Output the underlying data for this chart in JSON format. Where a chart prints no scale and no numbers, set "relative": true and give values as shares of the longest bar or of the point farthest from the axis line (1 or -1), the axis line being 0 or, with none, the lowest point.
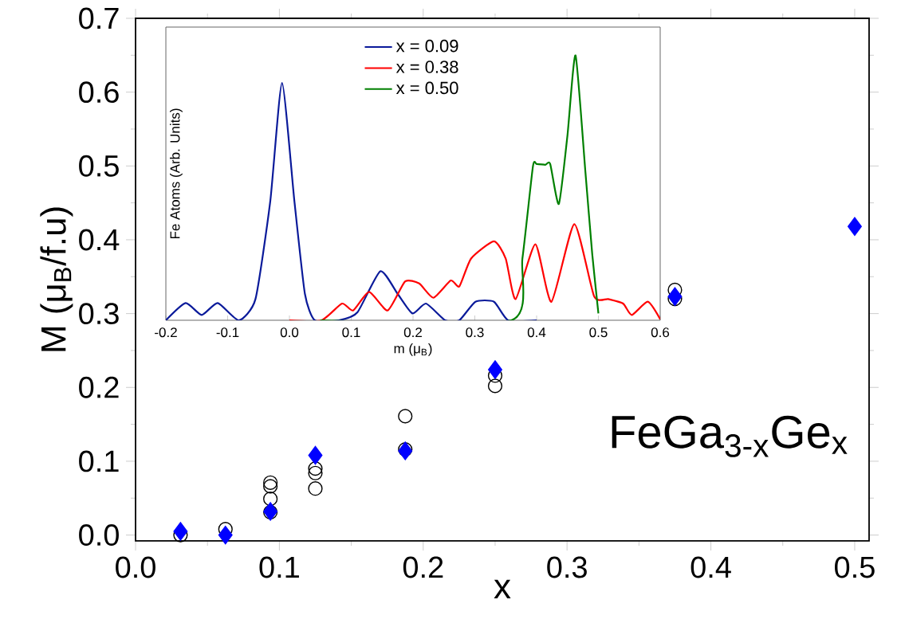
{
  "chart_data": [
    {
      "type": "scatter",
      "xlabel": "x",
      "ylabel": "M (μ$_{B}$/f.u)",
      "annotations": [
        "FeGa$_{3-x}$Ge$_{x}$"
      ],
      "xlim": [
        0,
        0.51
      ],
      "ylim": [
        -0.008,
        0.7
      ],
      "xticks": [
        {
          "value": 0,
          "label": "0.0"
        },
        0.1,
        0.2,
        0.3,
        0.4,
        0.5
      ],
      "yticks": [
        {
          "value": 0,
          "label": "0.0"
        },
        0.1,
        0.2,
        0.3,
        0.4,
        0.5,
        0.6,
        0.7
      ],
      "series": [
        {
          "color": "#000000",
          "marker": "circle",
          "x": [
            0.03125,
            0.0625,
            0.09375,
            0.09375,
            0.09375,
            0.09375,
            0.125,
            0.125,
            0.125,
            0.1875,
            0.1875,
            0.25,
            0.25,
            0.375,
            0.375
          ],
          "values": [
            0.0,
            0.008,
            0.071,
            0.066,
            0.049,
            0.031,
            0.09,
            0.084,
            0.063,
            0.161,
            0.116,
            0.202,
            0.216,
            0.332,
            0.32
          ]
        },
        {
          "color": "#0000ff",
          "marker": "diamond",
          "x": [
            0.03125,
            0.0625,
            0.09375,
            0.125,
            0.1875,
            0.25,
            0.375,
            0.5
          ],
          "values": [
            0.005,
            0.0,
            0.032,
            0.108,
            0.114,
            0.224,
            0.323,
            0.418
          ]
        }
      ]
    },
    {
      "type": "line",
      "xlabel": "m (μ$_{B}$)",
      "ylabel": "Fe Atoms (Arb. Units)",
      "relative": true,
      "tick_labels": "x",
      "legend": "top",
      "xlim": [
        -0.2,
        0.6
      ],
      "xticks": [
        -0.2,
        -0.1,
        {
          "value": 0,
          "label": "0.0"
        },
        0.1,
        0.2,
        0.3,
        0.4,
        0.5,
        0.6
      ],
      "series": [
        {
          "name": "x = 0.09",
          "color": "#0a1a9a",
          "x": [
            -0.2,
            -0.168,
            -0.142,
            -0.116,
            -0.082,
            -0.055,
            -0.031,
            -0.012,
            0.008,
            0.025,
            0.041,
            0.08,
            0.11,
            0.147,
            0.175,
            0.199,
            0.221,
            0.252,
            0.275,
            0.301,
            0.331,
            0.354,
            0.4
          ],
          "values": [
            0,
            0.065,
            0.02,
            0.065,
            0,
            0.08,
            0.45,
            0.896,
            0.45,
            0.1,
            0,
            0,
            0.03,
            0.185,
            0.1,
            0.026,
            0.063,
            0,
            0,
            0.07,
            0.07,
            0,
            0
          ]
        },
        {
          "name": "x = 0.38",
          "color": "#ff0000",
          "x": [
            0.0,
            0.052,
            0.085,
            0.103,
            0.129,
            0.159,
            0.187,
            0.21,
            0.233,
            0.261,
            0.275,
            0.294,
            0.331,
            0.35,
            0.366,
            0.398,
            0.424,
            0.461,
            0.493,
            0.516,
            0.54,
            0.554,
            0.58,
            0.6
          ],
          "values": [
            0,
            0,
            0.063,
            0.037,
            0.107,
            0.037,
            0.146,
            0.139,
            0.085,
            0.15,
            0.128,
            0.233,
            0.298,
            0.233,
            0.08,
            0.287,
            0.07,
            0.363,
            0.091,
            0.08,
            0.063,
            0.02,
            0.07,
            0.004
          ]
        },
        {
          "name": "x = 0.50",
          "color": "#008000",
          "x": [
            0.05,
            0.359,
            0.377,
            0.394,
            0.4,
            0.414,
            0.422,
            0.436,
            0.45,
            0.463,
            0.479,
            0.49,
            0.5
          ],
          "values": [
            0,
            0,
            0.233,
            0.58,
            0.59,
            0.587,
            0.59,
            0.439,
            0.7,
            1.0,
            0.559,
            0.25,
            0.026
          ]
        }
      ]
    }
  ]
}
